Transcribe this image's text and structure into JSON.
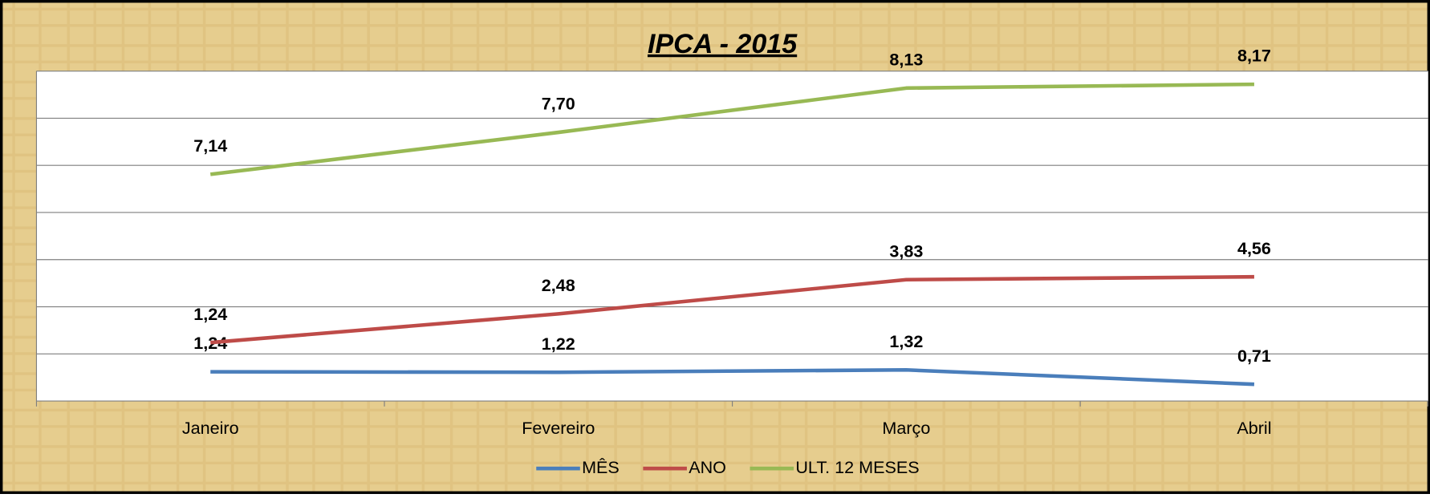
{
  "chart_data": {
    "type": "line",
    "stacked": true,
    "title": "IPCA - 2015",
    "categories": [
      "Janeiro",
      "Fevereiro",
      "Março",
      "Abril"
    ],
    "series": [
      {
        "name": "MÊS",
        "color": "#4a7ebb",
        "values": [
          1.24,
          1.22,
          1.32,
          0.71
        ],
        "value_labels": [
          "1,24",
          "1,22",
          "1,32",
          "0,71"
        ]
      },
      {
        "name": "ANO",
        "color": "#be4b48",
        "values": [
          1.24,
          2.48,
          3.83,
          4.56
        ],
        "value_labels": [
          "1,24",
          "2,48",
          "3,83",
          "4,56"
        ]
      },
      {
        "name": "ULT. 12 MESES",
        "color": "#98b954",
        "values": [
          7.14,
          7.7,
          8.13,
          8.17
        ],
        "value_labels": [
          "7,14",
          "7,70",
          "8,13",
          "8,17"
        ]
      }
    ],
    "ylim": [
      0,
      14
    ],
    "yticks": [
      0,
      2,
      4,
      6,
      8,
      10,
      12,
      14
    ],
    "grid": true
  }
}
